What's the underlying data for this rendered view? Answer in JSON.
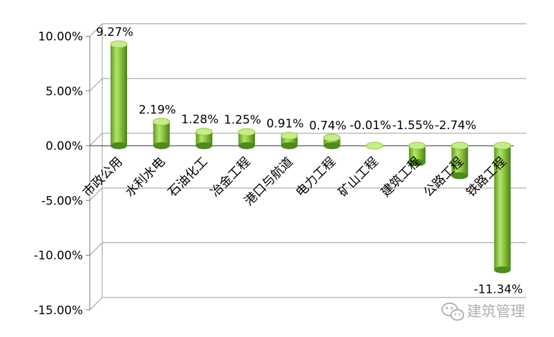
{
  "chart_data": {
    "type": "bar",
    "categories": [
      "市政公用",
      "水利水电",
      "石油化工",
      "冶金工程",
      "港口与航道",
      "电力工程",
      "矿山工程",
      "建筑工程",
      "公路工程",
      "铁路工程"
    ],
    "values": [
      9.27,
      2.19,
      1.28,
      1.25,
      0.91,
      0.74,
      -0.01,
      -1.55,
      -2.74,
      -11.34
    ],
    "data_labels": [
      "9.27%",
      "2.19%",
      "1.28%",
      "1.25%",
      "0.91%",
      "0.74%",
      "-0.01%",
      "-1.55%",
      "-2.74%",
      "-11.34%"
    ],
    "ytick_values": [
      10,
      5,
      0,
      -5,
      -10,
      -15
    ],
    "ytick_labels": [
      "10.00%",
      "5.00%",
      "0.00%",
      "-5.00%",
      "-10.00%",
      "-15.00%"
    ],
    "ylim": [
      -15,
      10
    ],
    "grid": true,
    "legend": "none",
    "bar_style": "3d-cylinder",
    "colors": {
      "bar": "#8cc63f",
      "bar_dark": "#4e8a1f",
      "bar_light": "#c8ec8a",
      "grid": "#999999"
    }
  },
  "watermark": {
    "text": "建筑管理",
    "icon": "wechat-icon"
  }
}
